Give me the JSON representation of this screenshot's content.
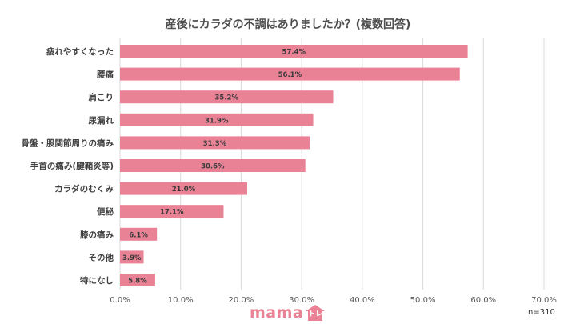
{
  "chart_data": {
    "type": "bar",
    "orientation": "horizontal",
    "title": "産後にカラダの不調はありましたか？(複数回答)",
    "categories": [
      "疲れやすくなった",
      "腰痛",
      "肩こり",
      "尿漏れ",
      "骨盤・股関節周りの痛み",
      "手首の痛み(腱鞘炎等)",
      "カラダのむくみ",
      "便秘",
      "膝の痛み",
      "その他",
      "特になし"
    ],
    "values": [
      57.4,
      56.1,
      35.2,
      31.9,
      31.3,
      30.6,
      21.0,
      17.1,
      6.1,
      3.9,
      5.8
    ],
    "data_labels": [
      "57.4%",
      "56.1%",
      "35.2%",
      "31.9%",
      "31.3%",
      "30.6%",
      "21.0%",
      "17.1%",
      "6.1%",
      "3.9%",
      "5.8%"
    ],
    "xlim": [
      0,
      70
    ],
    "x_ticks": [
      0,
      10,
      20,
      30,
      40,
      50,
      60,
      70
    ],
    "x_tick_labels": [
      "0.0%",
      "10.0%",
      "20.0%",
      "30.0%",
      "40.0%",
      "50.0%",
      "60.0%",
      "70.0%"
    ],
    "xlabel": "",
    "ylabel": "",
    "grid": true,
    "legend": "none",
    "bar_color": "#ea8296"
  },
  "brand": {
    "logo_text": "mama",
    "logo_house_text": "トレ",
    "logo_color": "#ea8296"
  },
  "note": "n=310"
}
